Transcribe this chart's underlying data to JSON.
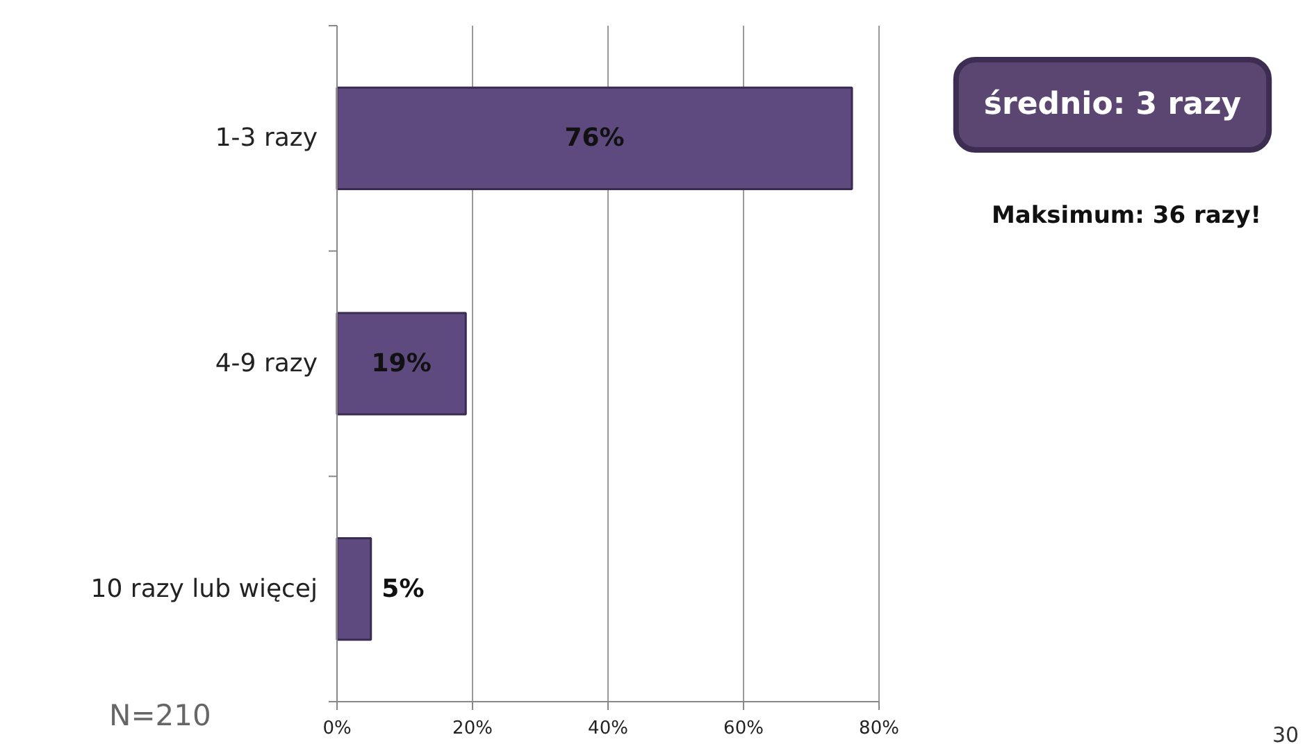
{
  "chart_data": {
    "type": "bar",
    "orientation": "horizontal",
    "categories": [
      "1-3 razy",
      "4-9 razy",
      "10 razy lub więcej"
    ],
    "values": [
      76,
      19,
      5
    ],
    "color": "#5e4a7e",
    "value_labels": [
      "76%",
      "19%",
      "5%"
    ],
    "xlim": [
      0,
      80
    ],
    "xticks": [
      {
        "value": 0,
        "label": "0%"
      },
      {
        "value": 20,
        "label": "20%"
      },
      {
        "value": 40,
        "label": "40%"
      },
      {
        "value": 60,
        "label": "60%"
      },
      {
        "value": 80,
        "label": "80%"
      }
    ],
    "grid": "x",
    "annotations": [
      "średnio: 3 razy",
      "Maksimum: 36 razy!",
      "N=210",
      "30"
    ]
  }
}
